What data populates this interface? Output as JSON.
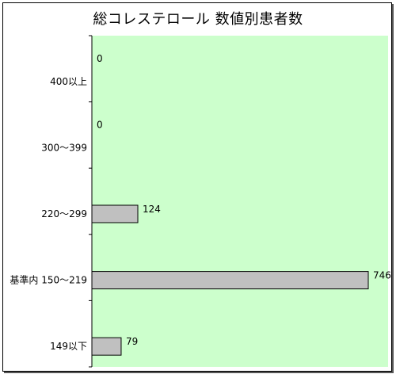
{
  "chart_data": {
    "type": "bar",
    "orientation": "horizontal",
    "title": "総コレステロール 数値別患者数",
    "categories": [
      "400以上",
      "300～399",
      "220～299",
      "基準内 150～219",
      "149以下"
    ],
    "values": [
      0,
      0,
      124,
      746,
      79
    ],
    "xlim": [
      0,
      746
    ],
    "grid": false,
    "legend": "none",
    "colors": {
      "plot_background": "#ccffcc",
      "bar_fill": "#c0c0c0",
      "bar_stroke": "#000000",
      "frame": "#000000"
    }
  }
}
